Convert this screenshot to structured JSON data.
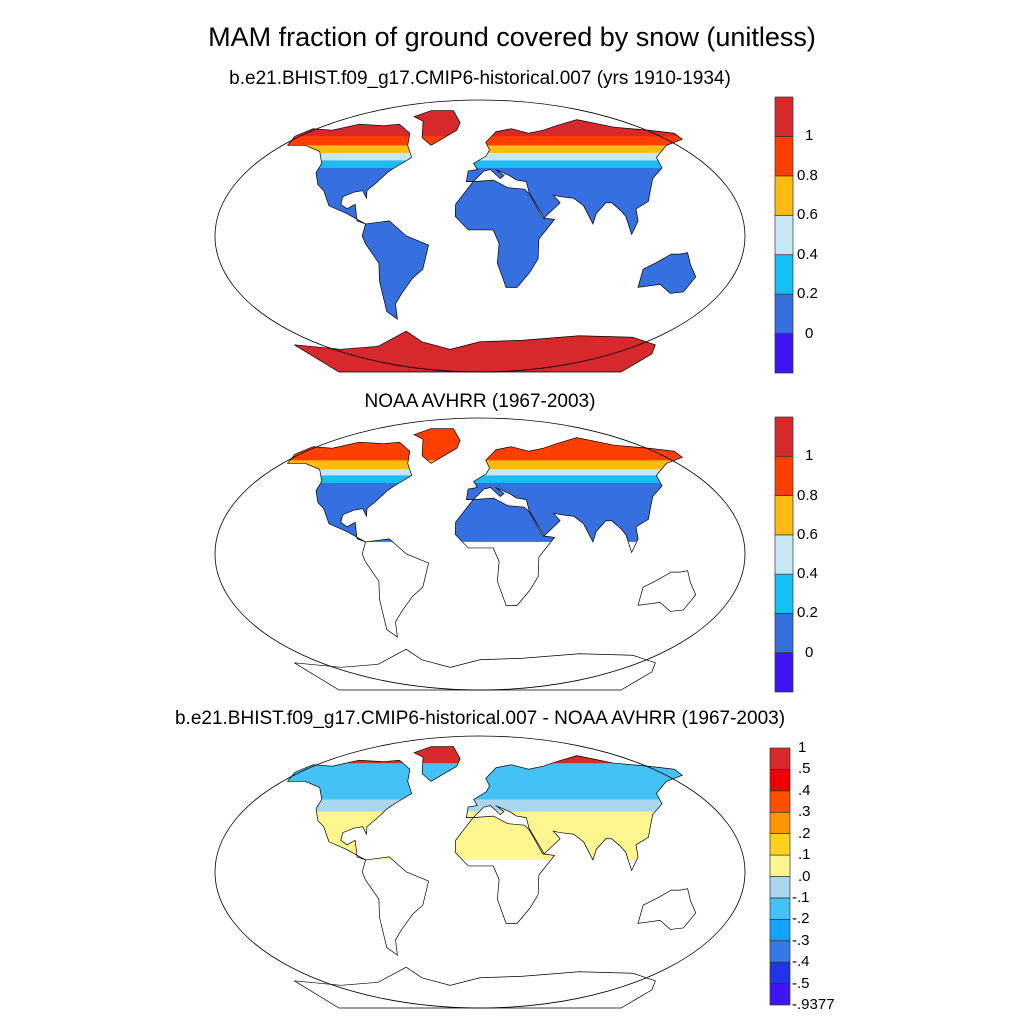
{
  "title": "MAM fraction of ground covered by snow (unitless)",
  "panels": [
    {
      "subtitle": "b.e21.BHIST.f09_g17.CMIP6-historical.007 (yrs 1910-1934)",
      "bands": [
        {
          "min_lat": 66,
          "color": "#d7282b"
        },
        {
          "min_lat": 60,
          "color": "#ff3f00"
        },
        {
          "min_lat": 55,
          "color": "#ffbb10"
        },
        {
          "min_lat": 50,
          "color": "#c9e6f5"
        },
        {
          "min_lat": 45,
          "color": "#1fbcf2"
        },
        {
          "min_lat": -58,
          "color": "#3670e0"
        },
        {
          "min_lat": -90,
          "color": "#d7282b"
        }
      ]
    },
    {
      "subtitle": "NOAA AVHRR (1967-2003)",
      "bands": [
        {
          "min_lat": 62,
          "color": "#ff3f00"
        },
        {
          "min_lat": 56,
          "color": "#ffbb10"
        },
        {
          "min_lat": 52,
          "color": "#c9e6f5"
        },
        {
          "min_lat": 47,
          "color": "#1fbcf2"
        },
        {
          "min_lat": 8,
          "color": "#3670e0"
        },
        {
          "min_lat": -90,
          "color": "#ffffff"
        }
      ]
    },
    {
      "subtitle": "b.e21.BHIST.f09_g17.CMIP6-historical.007 - NOAA AVHRR (1967-2003)",
      "bands": [
        {
          "min_lat": 72,
          "color": "#d7282b"
        },
        {
          "min_lat": 48,
          "color": "#45c2f5"
        },
        {
          "min_lat": 40,
          "color": "#a9d8ee"
        },
        {
          "min_lat": 8,
          "color": "#fff68f"
        },
        {
          "min_lat": -90,
          "color": "#ffffff"
        }
      ]
    }
  ],
  "colorbars": [
    {
      "colors": [
        "#3f14f5",
        "#3670e0",
        "#14c0f5",
        "#c9e6f5",
        "#ffbb10",
        "#ff3f00",
        "#d7282b"
      ],
      "labels": [
        "0",
        "0.2",
        "0.4",
        "0.6",
        "0.8",
        "1"
      ]
    },
    {
      "colors": [
        "#3f14f5",
        "#3670e0",
        "#14c0f5",
        "#c9e6f5",
        "#ffbb10",
        "#ff3f00",
        "#d7282b"
      ],
      "labels": [
        "0",
        "0.2",
        "0.4",
        "0.6",
        "0.8",
        "1"
      ]
    },
    {
      "colors": [
        "#3f14f5",
        "#2233e8",
        "#3478e8",
        "#11a2fa",
        "#45c2f5",
        "#a9d8ee",
        "#fff68f",
        "#ffd21f",
        "#ff9500",
        "#ff4f00",
        "#ee0000",
        "#d7282b"
      ],
      "labels": [
        "-.9377",
        "-.5",
        "-.4",
        "-.3",
        "-.2",
        "-.1",
        ".0",
        ".1",
        ".2",
        ".3",
        ".4",
        ".5",
        "1"
      ]
    }
  ]
}
